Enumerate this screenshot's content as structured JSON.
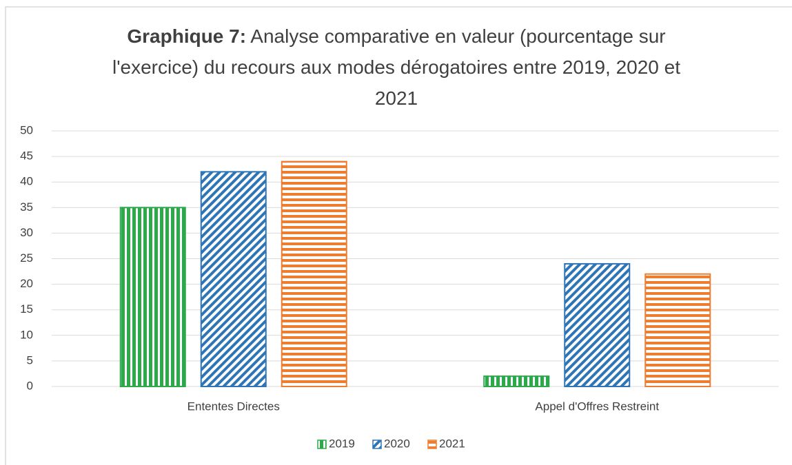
{
  "chart_data": {
    "type": "bar",
    "title_prefix": "Graphique 7:",
    "title": "Analyse comparative en valeur (pourcentage sur l'exercice) du recours aux modes dérogatoires entre 2019, 2020 et 2021",
    "categories": [
      "Ententes Directes",
      "Appel d'Offres Restreint"
    ],
    "series": [
      {
        "name": "2019",
        "color": "#2aa84a",
        "pattern": "vertical",
        "values": [
          35,
          2
        ]
      },
      {
        "name": "2020",
        "color": "#2e75b6",
        "pattern": "diagonal",
        "values": [
          42,
          24
        ]
      },
      {
        "name": "2021",
        "color": "#ed7d31",
        "pattern": "horizontal",
        "values": [
          44,
          22
        ]
      }
    ],
    "ylim": [
      0,
      50
    ],
    "yticks": [
      0,
      5,
      10,
      15,
      20,
      25,
      30,
      35,
      40,
      45,
      50
    ],
    "grid": true,
    "legend": "bottom"
  }
}
